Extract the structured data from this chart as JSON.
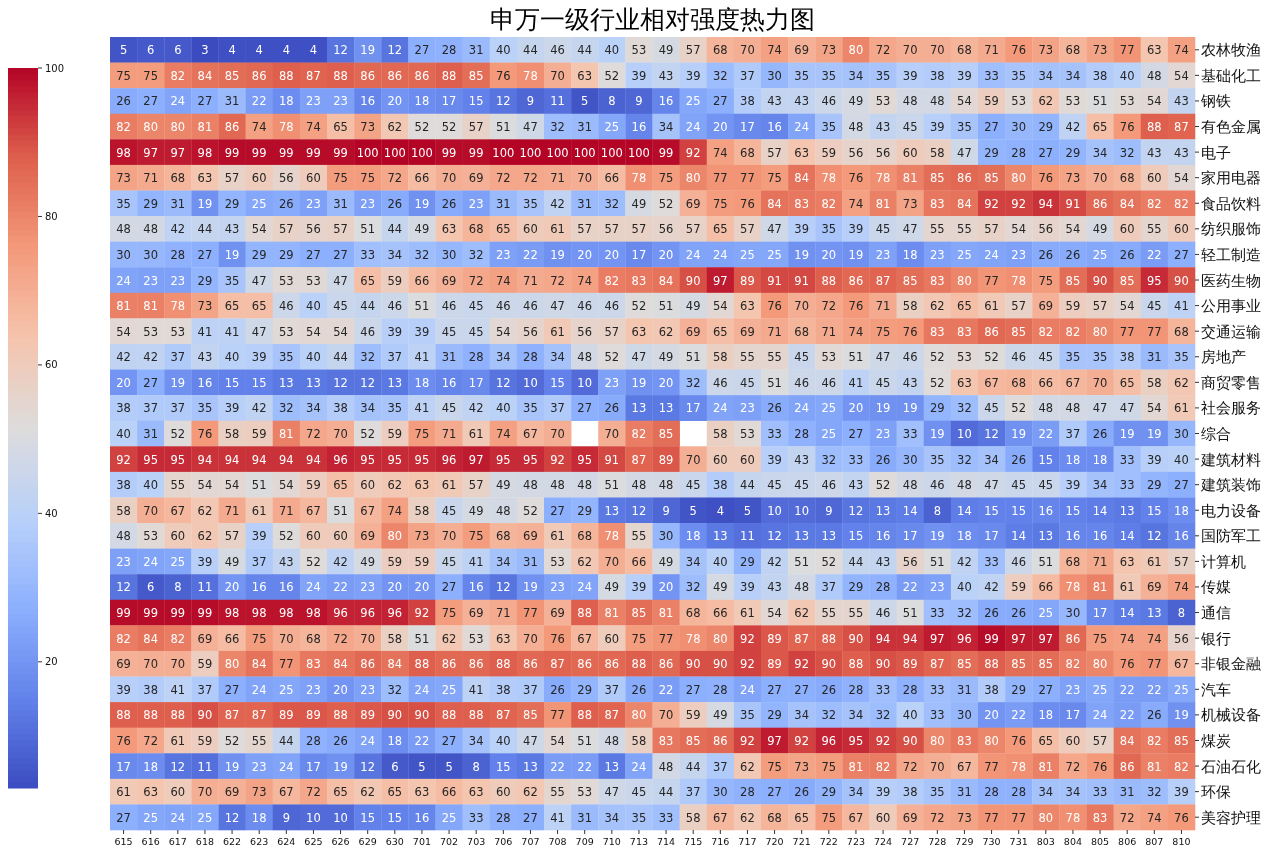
{
  "chart_data": {
    "type": "heatmap",
    "title": "申万一级行业相对强度热力图",
    "categories": [
      "615",
      "616",
      "617",
      "618",
      "622",
      "623",
      "624",
      "625",
      "626",
      "629",
      "630",
      "701",
      "702",
      "703",
      "706",
      "707",
      "708",
      "709",
      "710",
      "713",
      "714",
      "715",
      "716",
      "717",
      "720",
      "721",
      "722",
      "723",
      "724",
      "727",
      "728",
      "729",
      "730",
      "731",
      "803",
      "804",
      "805",
      "806",
      "807",
      "810"
    ],
    "y_categories": [
      "农林牧渔",
      "基础化工",
      "钢铁",
      "有色金属",
      "电子",
      "家用电器",
      "食品饮料",
      "纺织服饰",
      "轻工制造",
      "医药生物",
      "公用事业",
      "交通运输",
      "房地产",
      "商贸零售",
      "社会服务",
      "综合",
      "建筑材料",
      "建筑装饰",
      "电力设备",
      "国防军工",
      "计算机",
      "传媒",
      "通信",
      "银行",
      "非银金融",
      "汽车",
      "机械设备",
      "煤炭",
      "石油石化",
      "环保",
      "美容护理"
    ],
    "cells": [
      [
        5,
        6,
        6,
        3,
        4,
        4,
        4,
        4,
        12,
        19,
        12,
        27,
        28,
        31,
        40,
        44,
        46,
        44,
        40,
        53,
        49,
        57,
        68,
        70,
        74,
        69,
        73,
        80,
        72,
        70,
        70,
        68,
        71,
        76,
        73,
        68,
        73,
        77,
        63,
        74
      ],
      [
        75,
        75,
        82,
        84,
        85,
        86,
        88,
        87,
        88,
        86,
        86,
        86,
        88,
        85,
        76,
        78,
        70,
        63,
        52,
        39,
        43,
        39,
        32,
        37,
        30,
        35,
        35,
        34,
        35,
        39,
        38,
        39,
        33,
        35,
        34,
        34,
        38,
        40,
        48,
        54
      ],
      [
        26,
        27,
        24,
        27,
        31,
        22,
        18,
        23,
        23,
        16,
        20,
        18,
        17,
        15,
        12,
        9,
        11,
        5,
        8,
        9,
        16,
        25,
        27,
        38,
        43,
        43,
        46,
        49,
        53,
        48,
        48,
        54,
        59,
        53,
        62,
        53,
        51,
        53,
        54,
        43
      ],
      [
        82,
        80,
        80,
        81,
        86,
        74,
        78,
        74,
        65,
        73,
        62,
        52,
        52,
        57,
        51,
        47,
        32,
        31,
        25,
        16,
        34,
        24,
        20,
        17,
        16,
        24,
        35,
        48,
        43,
        45,
        39,
        35,
        27,
        30,
        29,
        42,
        65,
        76,
        88,
        87
      ],
      [
        98,
        97,
        97,
        98,
        99,
        99,
        99,
        99,
        99,
        100,
        100,
        100,
        99,
        99,
        100,
        100,
        100,
        100,
        100,
        100,
        99,
        92,
        74,
        68,
        57,
        63,
        59,
        56,
        56,
        60,
        58,
        47,
        29,
        28,
        27,
        29,
        34,
        32,
        43,
        43
      ],
      [
        73,
        71,
        68,
        63,
        57,
        60,
        56,
        60,
        75,
        75,
        72,
        66,
        70,
        69,
        72,
        72,
        71,
        70,
        66,
        78,
        75,
        80,
        77,
        77,
        75,
        84,
        78,
        76,
        78,
        81,
        85,
        86,
        85,
        80,
        76,
        73,
        70,
        68,
        60,
        54
      ],
      [
        35,
        29,
        31,
        19,
        29,
        25,
        26,
        23,
        31,
        23,
        26,
        19,
        26,
        23,
        31,
        35,
        42,
        31,
        32,
        49,
        52,
        69,
        75,
        76,
        84,
        83,
        82,
        74,
        81,
        73,
        83,
        84,
        92,
        92,
        94,
        91,
        86,
        84,
        82,
        82
      ],
      [
        48,
        48,
        42,
        44,
        43,
        54,
        57,
        56,
        57,
        51,
        44,
        49,
        63,
        68,
        65,
        60,
        61,
        57,
        57,
        57,
        56,
        57,
        65,
        57,
        47,
        39,
        35,
        39,
        45,
        47,
        55,
        55,
        57,
        54,
        56,
        54,
        49,
        60,
        55,
        60
      ],
      [
        30,
        30,
        28,
        27,
        19,
        29,
        29,
        27,
        27,
        33,
        34,
        32,
        30,
        32,
        23,
        22,
        19,
        20,
        20,
        17,
        20,
        24,
        24,
        25,
        25,
        19,
        20,
        19,
        23,
        18,
        23,
        25,
        24,
        23,
        26,
        26,
        25,
        26,
        22,
        27
      ],
      [
        24,
        23,
        23,
        29,
        35,
        47,
        53,
        53,
        47,
        65,
        59,
        66,
        69,
        72,
        74,
        71,
        72,
        74,
        82,
        83,
        84,
        90,
        97,
        89,
        91,
        91,
        88,
        86,
        87,
        85,
        83,
        80,
        77,
        78,
        75,
        85,
        90,
        85,
        95,
        90
      ],
      [
        81,
        81,
        78,
        73,
        65,
        65,
        46,
        40,
        45,
        44,
        46,
        51,
        46,
        45,
        46,
        46,
        47,
        46,
        46,
        52,
        51,
        49,
        54,
        63,
        76,
        70,
        72,
        76,
        71,
        58,
        62,
        65,
        61,
        57,
        69,
        59,
        57,
        54,
        45,
        41
      ],
      [
        54,
        53,
        53,
        41,
        41,
        47,
        53,
        54,
        54,
        46,
        39,
        39,
        45,
        45,
        54,
        56,
        61,
        56,
        57,
        63,
        62,
        69,
        65,
        69,
        71,
        68,
        71,
        74,
        75,
        76,
        83,
        83,
        86,
        85,
        82,
        82,
        80,
        77,
        77,
        68
      ],
      [
        42,
        42,
        37,
        43,
        40,
        39,
        35,
        40,
        44,
        32,
        37,
        41,
        31,
        28,
        34,
        28,
        34,
        48,
        52,
        47,
        49,
        51,
        58,
        55,
        55,
        45,
        53,
        51,
        47,
        46,
        52,
        53,
        52,
        46,
        45,
        35,
        35,
        38,
        31,
        35
      ],
      [
        20,
        27,
        19,
        16,
        15,
        15,
        13,
        13,
        12,
        12,
        13,
        18,
        16,
        17,
        12,
        10,
        15,
        10,
        23,
        19,
        20,
        32,
        46,
        45,
        51,
        46,
        46,
        41,
        45,
        43,
        52,
        63,
        67,
        68,
        66,
        67,
        70,
        65,
        58,
        62
      ],
      [
        38,
        37,
        37,
        35,
        39,
        42,
        32,
        34,
        38,
        34,
        35,
        41,
        45,
        42,
        40,
        35,
        37,
        27,
        26,
        13,
        13,
        17,
        24,
        23,
        26,
        24,
        25,
        20,
        19,
        19,
        29,
        32,
        45,
        52,
        48,
        48,
        47,
        47,
        54,
        61
      ],
      [
        40,
        31,
        52,
        76,
        58,
        59,
        81,
        72,
        70,
        52,
        59,
        75,
        71,
        61,
        74,
        67,
        70,
        null,
        70,
        82,
        85,
        null,
        58,
        53,
        33,
        28,
        25,
        27,
        23,
        33,
        19,
        10,
        12,
        19,
        22,
        37,
        26,
        19,
        19,
        30
      ],
      [
        92,
        95,
        95,
        94,
        94,
        94,
        94,
        94,
        96,
        95,
        95,
        95,
        96,
        97,
        95,
        95,
        92,
        95,
        91,
        87,
        89,
        70,
        60,
        60,
        39,
        43,
        32,
        33,
        26,
        30,
        35,
        32,
        34,
        26,
        15,
        18,
        18,
        33,
        39,
        40
      ],
      [
        38,
        40,
        55,
        54,
        54,
        51,
        54,
        59,
        65,
        60,
        62,
        63,
        61,
        57,
        49,
        48,
        48,
        48,
        51,
        48,
        48,
        45,
        38,
        44,
        45,
        45,
        46,
        43,
        52,
        48,
        46,
        48,
        47,
        45,
        45,
        39,
        34,
        33,
        29,
        27
      ],
      [
        58,
        70,
        67,
        62,
        71,
        61,
        71,
        67,
        51,
        67,
        74,
        58,
        45,
        49,
        48,
        52,
        27,
        29,
        13,
        12,
        9,
        5,
        4,
        5,
        10,
        10,
        9,
        12,
        13,
        14,
        8,
        14,
        15,
        15,
        16,
        15,
        14,
        13,
        15,
        18
      ],
      [
        48,
        53,
        60,
        62,
        57,
        39,
        52,
        60,
        60,
        69,
        80,
        73,
        70,
        75,
        68,
        69,
        61,
        68,
        78,
        55,
        30,
        18,
        13,
        11,
        12,
        13,
        13,
        15,
        16,
        17,
        19,
        18,
        17,
        14,
        13,
        16,
        16,
        14,
        12,
        16
      ],
      [
        23,
        24,
        25,
        39,
        49,
        37,
        43,
        52,
        42,
        49,
        59,
        59,
        45,
        41,
        34,
        31,
        53,
        62,
        70,
        66,
        49,
        34,
        40,
        29,
        42,
        51,
        52,
        44,
        43,
        56,
        51,
        42,
        33,
        46,
        51,
        68,
        71,
        63,
        61,
        57
      ],
      [
        12,
        6,
        8,
        11,
        20,
        16,
        16,
        24,
        22,
        23,
        20,
        20,
        27,
        16,
        12,
        19,
        23,
        24,
        49,
        39,
        20,
        32,
        49,
        39,
        43,
        48,
        37,
        29,
        28,
        22,
        23,
        40,
        42,
        59,
        66,
        78,
        81,
        61,
        69,
        74
      ],
      [
        99,
        99,
        99,
        99,
        98,
        98,
        98,
        98,
        96,
        96,
        96,
        92,
        75,
        69,
        71,
        77,
        69,
        88,
        81,
        85,
        81,
        68,
        66,
        61,
        54,
        62,
        55,
        55,
        46,
        51,
        33,
        32,
        26,
        26,
        25,
        30,
        17,
        14,
        13,
        8
      ],
      [
        82,
        84,
        82,
        69,
        66,
        75,
        70,
        68,
        72,
        70,
        58,
        51,
        62,
        53,
        63,
        70,
        76,
        67,
        60,
        75,
        77,
        78,
        80,
        92,
        89,
        87,
        88,
        90,
        94,
        94,
        97,
        96,
        99,
        97,
        97,
        86,
        75,
        74,
        74,
        56
      ],
      [
        69,
        70,
        70,
        59,
        80,
        84,
        77,
        83,
        84,
        86,
        84,
        88,
        86,
        86,
        88,
        86,
        87,
        86,
        86,
        88,
        86,
        90,
        90,
        92,
        89,
        92,
        90,
        88,
        90,
        89,
        87,
        85,
        88,
        85,
        85,
        82,
        80,
        76,
        77,
        67
      ],
      [
        39,
        38,
        41,
        37,
        27,
        24,
        25,
        23,
        20,
        23,
        32,
        24,
        25,
        41,
        38,
        37,
        26,
        29,
        37,
        26,
        22,
        27,
        28,
        24,
        27,
        27,
        26,
        28,
        33,
        28,
        33,
        31,
        38,
        29,
        27,
        23,
        25,
        22,
        22,
        25
      ],
      [
        88,
        88,
        88,
        90,
        87,
        87,
        89,
        89,
        88,
        89,
        90,
        90,
        88,
        88,
        87,
        85,
        77,
        88,
        87,
        80,
        70,
        59,
        49,
        35,
        29,
        34,
        32,
        34,
        32,
        40,
        33,
        30,
        20,
        22,
        18,
        17,
        24,
        22,
        26,
        19
      ],
      [
        76,
        72,
        61,
        59,
        52,
        55,
        44,
        28,
        26,
        24,
        18,
        22,
        27,
        34,
        40,
        47,
        54,
        51,
        48,
        58,
        83,
        85,
        86,
        92,
        97,
        92,
        96,
        95,
        92,
        90,
        80,
        83,
        80,
        76,
        65,
        60,
        57,
        84,
        82,
        85
      ],
      [
        17,
        18,
        12,
        11,
        19,
        23,
        24,
        17,
        19,
        12,
        6,
        5,
        5,
        8,
        15,
        13,
        22,
        22,
        13,
        24,
        48,
        44,
        37,
        62,
        75,
        73,
        75,
        81,
        82,
        72,
        70,
        67,
        77,
        78,
        81,
        72,
        76,
        86,
        81,
        82
      ],
      [
        61,
        63,
        60,
        70,
        69,
        73,
        67,
        72,
        65,
        62,
        65,
        63,
        66,
        63,
        60,
        62,
        55,
        53,
        47,
        45,
        44,
        37,
        30,
        28,
        27,
        26,
        29,
        34,
        39,
        38,
        35,
        31,
        28,
        28,
        34,
        34,
        33,
        31,
        32,
        39
      ],
      [
        27,
        25,
        24,
        25,
        12,
        18,
        9,
        10,
        10,
        15,
        15,
        16,
        25,
        33,
        28,
        27,
        41,
        31,
        34,
        35,
        33,
        58,
        67,
        62,
        68,
        65,
        75,
        67,
        60,
        69,
        72,
        73,
        77,
        77,
        80,
        78,
        83,
        72,
        74,
        76
      ]
    ],
    "clim": [
      3,
      100
    ],
    "cticks": [
      20,
      40,
      60,
      80,
      100
    ],
    "data_labels": true
  }
}
